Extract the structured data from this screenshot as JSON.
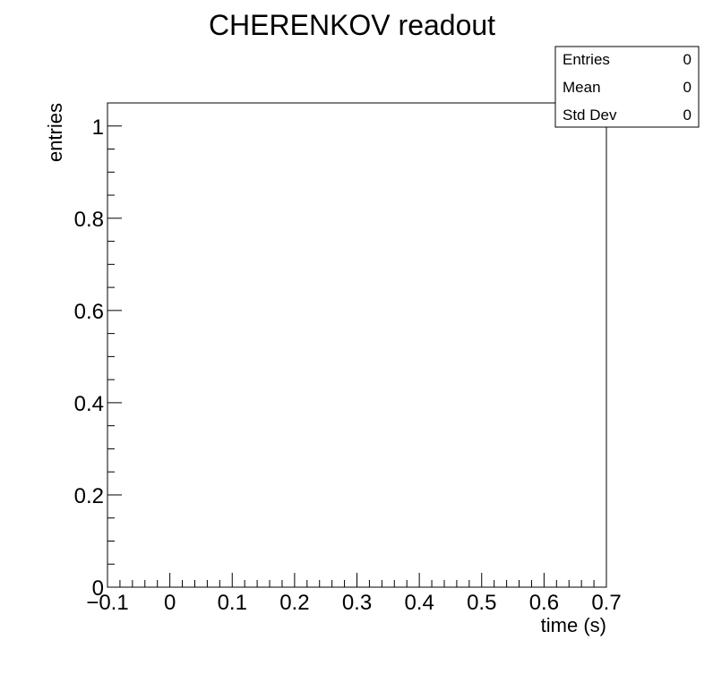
{
  "chart_data": {
    "type": "bar",
    "title": "CHERENKOV readout",
    "xlabel": "time (s)",
    "ylabel": "entries",
    "xlim": [
      -0.1,
      0.7
    ],
    "ylim": [
      0,
      1.05
    ],
    "x_major_ticks": [
      -0.1,
      0,
      0.1,
      0.2,
      0.3,
      0.4,
      0.5,
      0.6,
      0.7
    ],
    "x_tick_labels": [
      "−0.1",
      "0",
      "0.1",
      "0.2",
      "0.3",
      "0.4",
      "0.5",
      "0.6",
      "0.7"
    ],
    "y_major_ticks": [
      0,
      0.2,
      0.4,
      0.6,
      0.8,
      1
    ],
    "y_tick_labels": [
      "0",
      "0.2",
      "0.4",
      "0.6",
      "0.8",
      "1"
    ],
    "x_minor_per_major": 5,
    "y_minor_per_major": 4,
    "grid": false,
    "series": [],
    "stats_box": {
      "placement": "top-right",
      "rows": [
        {
          "label": "Entries",
          "value": "0"
        },
        {
          "label": "Mean",
          "value": "0"
        },
        {
          "label": "Std Dev",
          "value": "0"
        }
      ]
    }
  }
}
